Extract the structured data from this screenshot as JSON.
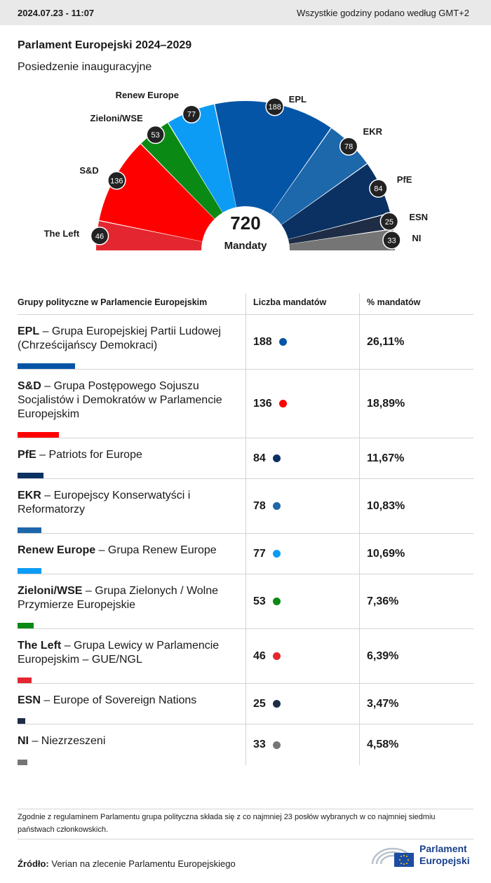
{
  "header": {
    "timestamp": "2024.07.23 - 11:07",
    "timezone_note": "Wszystkie godziny podano według GMT+2"
  },
  "title": "Parlament Europejski 2024–2029",
  "subtitle": "Posiedzenie inauguracyjne",
  "chart_data": {
    "type": "hemicycle",
    "total": 720,
    "center_number": "720",
    "center_label": "Mandaty",
    "segments": [
      {
        "label": "The Left",
        "value": 46,
        "color": "#e3262f"
      },
      {
        "label": "S&D",
        "value": 136,
        "color": "#ff0000"
      },
      {
        "label": "Zieloni/WSE",
        "value": 53,
        "color": "#0a8a14"
      },
      {
        "label": "Renew Europe",
        "value": 77,
        "color": "#0d9cf5"
      },
      {
        "label": "EPL",
        "value": 188,
        "color": "#0555a6"
      },
      {
        "label": "EKR",
        "value": 78,
        "color": "#1d67ab"
      },
      {
        "label": "PfE",
        "value": 84,
        "color": "#0a3162"
      },
      {
        "label": "ESN",
        "value": 25,
        "color": "#1e2d45"
      },
      {
        "label": "NI",
        "value": 33,
        "color": "#757575"
      }
    ]
  },
  "table": {
    "headers": [
      "Grupy polityczne w Parlamencie Europejskim",
      "Liczba mandatów",
      "% mandatów"
    ],
    "rows": [
      {
        "abbr": "EPL",
        "name": " – Grupa Europejskiej Partii Ludowej (Chrześcijańscy Demokraci)",
        "seats": "188",
        "pct": "26,11%",
        "color": "#0555a6",
        "share": 0.2611
      },
      {
        "abbr": "S&D",
        "name": " – Grupa Postępowego Sojuszu Socjalistów i Demokratów w Parlamencie Europejskim",
        "seats": "136",
        "pct": "18,89%",
        "color": "#ff0000",
        "share": 0.1889
      },
      {
        "abbr": "PfE",
        "name": " – Patriots for Europe",
        "seats": "84",
        "pct": "11,67%",
        "color": "#0a3162",
        "share": 0.1167
      },
      {
        "abbr": "EKR",
        "name": " – Europejscy Konserwatyści i Reformatorzy",
        "seats": "78",
        "pct": "10,83%",
        "color": "#1d67ab",
        "share": 0.1083
      },
      {
        "abbr": "Renew Europe",
        "name": " – Grupa Renew Europe",
        "seats": "77",
        "pct": "10,69%",
        "color": "#0d9cf5",
        "share": 0.1069
      },
      {
        "abbr": "Zieloni/WSE",
        "name": " – Grupa Zielonych / Wolne Przymierze Europejskie",
        "seats": "53",
        "pct": "7,36%",
        "color": "#0a8a14",
        "share": 0.0736
      },
      {
        "abbr": "The Left",
        "name": " – Grupa Lewicy w Parlamencie Europejskim – GUE/NGL",
        "seats": "46",
        "pct": "6,39%",
        "color": "#e3262f",
        "share": 0.0639
      },
      {
        "abbr": "ESN",
        "name": " – Europe of Sovereign Nations",
        "seats": "25",
        "pct": "3,47%",
        "color": "#1e2d45",
        "share": 0.0347
      },
      {
        "abbr": "NI",
        "name": " – Niezrzeszeni",
        "seats": "33",
        "pct": "4,58%",
        "color": "#757575",
        "share": 0.0458
      }
    ]
  },
  "footnote": "Zgodnie z regulaminem Parlamentu grupa polityczna składa się z co najmniej 23 posłów wybranych w co najmniej siedmiu państwach członkowskich.",
  "source": {
    "label": "Źródło:",
    "text": " Verian na zlecenie Parlamentu Europejskiego"
  },
  "logo": {
    "line1": "Parlament",
    "line2": "Europejski",
    "icon": "european-parliament-logo-icon"
  }
}
